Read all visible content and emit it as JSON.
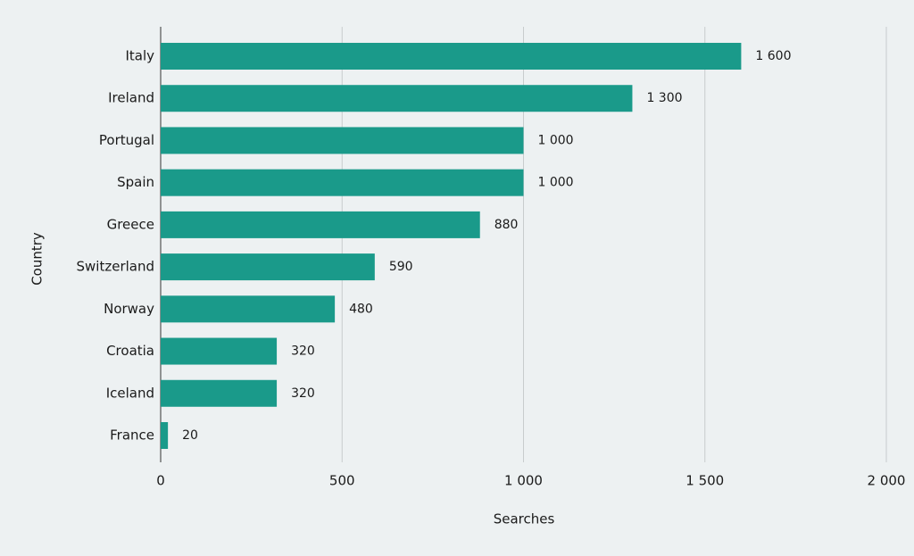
{
  "chart_data": {
    "type": "bar",
    "orientation": "horizontal",
    "xlabel": "Searches",
    "ylabel": "Country",
    "categories": [
      "Italy",
      "Ireland",
      "Portugal",
      "Spain",
      "Greece",
      "Switzerland",
      "Norway",
      "Croatia",
      "Iceland",
      "France"
    ],
    "values": [
      1600,
      1300,
      1000,
      1000,
      880,
      590,
      480,
      320,
      320,
      20
    ],
    "value_labels": [
      "1 600",
      "1 300",
      "1 000",
      "1 000",
      "880",
      "590",
      "480",
      "320",
      "320",
      "20"
    ],
    "color": "#1a9a8a",
    "xlim": [
      0,
      2000
    ],
    "xticks": [
      0,
      500,
      {
        "value": 1000,
        "label": "1 000"
      },
      {
        "value": 1500,
        "label": "1 500"
      },
      {
        "value": 2000,
        "label": "2 000"
      }
    ],
    "grid": true
  }
}
